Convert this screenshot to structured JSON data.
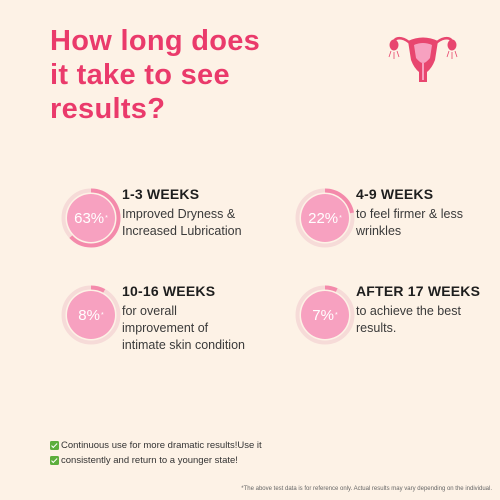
{
  "title": {
    "lines": [
      "How long does",
      "it take to see",
      "results?"
    ]
  },
  "icon": "uterus-icon",
  "colors": {
    "accent": "#ea3a6b",
    "circle": "#f7a1c0",
    "ring_track": "#f6dbd8",
    "ring_fill": "#f48aab",
    "background": "#fdf2e6"
  },
  "stats": [
    {
      "percent": "63%",
      "marker": "*",
      "fraction": 0.63,
      "heading": "1-3 WEEKS",
      "desc": [
        "Improved Dryness &",
        "Increased Lubrication"
      ]
    },
    {
      "percent": "22%",
      "marker": "*",
      "fraction": 0.22,
      "heading": "4-9 WEEKS",
      "desc": [
        "to feel firmer & less",
        "wrinkles"
      ]
    },
    {
      "percent": "8%",
      "marker": "*",
      "fraction": 0.08,
      "heading": "10-16 WEEKS",
      "desc": [
        "for overall",
        "improvement of",
        "intimate skin condition"
      ]
    },
    {
      "percent": "7%",
      "marker": "*",
      "fraction": 0.07,
      "heading": "AFTER 17 WEEKS",
      "desc": [
        "to achieve the best",
        "results."
      ]
    }
  ],
  "notes": [
    "Continuous use for more dramatic results!Use it",
    "consistently and return to a younger state!"
  ],
  "footnote": "*The above test data is for reference only. Actual results may vary depending on the individual."
}
